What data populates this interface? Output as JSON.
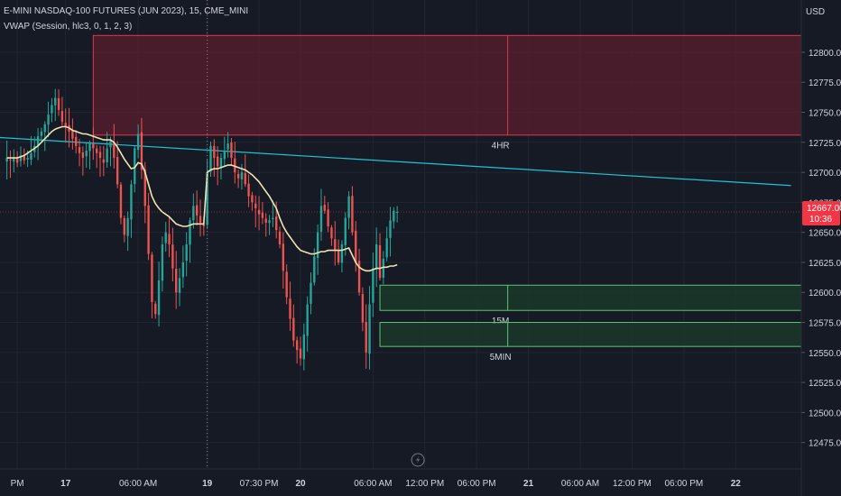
{
  "header": {
    "title": "E-MINI NASDAQ-100 FUTURES (JUN 2023), 15, CME_MINI",
    "indicator": "VWAP (Session, hlc3, 0, 1, 2, 3)"
  },
  "price_axis": {
    "currency": "USD",
    "last_price": "12667.00",
    "countdown": "10:36"
  },
  "colors": {
    "background": "#161a25",
    "up": "#26a69a",
    "down": "#ef5350",
    "vwap": "#f0e3b2",
    "trendline": "#22c2d6",
    "zone_4hr_fill": "#5a1e2c",
    "zone_4hr_border": "#e0384a",
    "zone_green_fill": "#1a3a2a",
    "zone_green_border": "#59c774",
    "price_badge": "#f23645",
    "grid": "#222632",
    "axis_text": "#d1d4dc"
  },
  "chart_data": {
    "type": "candlestick",
    "title": "E-MINI NASDAQ-100 FUTURES (JUN 2023), 15, CME_MINI",
    "ylim": [
      12462,
      12836
    ],
    "x_slot_range": [
      -2,
      230
    ],
    "y_ticks": [
      12475,
      12500,
      12525,
      12550,
      12575,
      12600,
      12625,
      12650,
      12675,
      12700,
      12725,
      12750,
      12775,
      12800
    ],
    "x_ticks": [
      {
        "slot": 3,
        "label": "PM"
      },
      {
        "slot": 17,
        "label": "17"
      },
      {
        "slot": 38,
        "label": "06:00 AM"
      },
      {
        "slot": 58,
        "label": "19"
      },
      {
        "slot": 73,
        "label": "07:30 PM"
      },
      {
        "slot": 85,
        "label": "20"
      },
      {
        "slot": 106,
        "label": "06:00 AM"
      },
      {
        "slot": 121,
        "label": "12:00 PM"
      },
      {
        "slot": 136,
        "label": "06:00 PM"
      },
      {
        "slot": 151,
        "label": "21"
      },
      {
        "slot": 166,
        "label": "06:00 AM"
      },
      {
        "slot": 181,
        "label": "12:00 PM"
      },
      {
        "slot": 196,
        "label": "06:00 PM"
      },
      {
        "slot": 211,
        "label": "22"
      }
    ],
    "session_break_slot": 58,
    "candles_close": [
      12712,
      12710,
      12712,
      12708,
      12714,
      12710,
      12712,
      12716,
      12722,
      12730,
      12734,
      12740,
      12748,
      12756,
      12762,
      12752,
      12742,
      12738,
      12734,
      12728,
      12722,
      12716,
      12712,
      12718,
      12724,
      12720,
      12716,
      12712,
      12708,
      12720,
      12726,
      12712,
      12690,
      12662,
      12648,
      12662,
      12690,
      12720,
      12732,
      12702,
      12672,
      12632,
      12592,
      12582,
      12610,
      12640,
      12650,
      12640,
      12620,
      12600,
      12612,
      12625,
      12640,
      12660,
      12672,
      12664,
      12658,
      12655,
      12700,
      12722,
      12712,
      12705,
      12712,
      12718,
      12724,
      12712,
      12700,
      12695,
      12700,
      12690,
      12680,
      12675,
      12670,
      12665,
      12662,
      12658,
      12660,
      12662,
      12652,
      12640,
      12618,
      12596,
      12578,
      12560,
      12552,
      12545,
      12565,
      12590,
      12608,
      12630,
      12650,
      12672,
      12668,
      12655,
      12645,
      12635,
      12625,
      12640,
      12662,
      12680,
      12650,
      12625,
      12600,
      12575,
      12550,
      12590,
      12620,
      12640,
      12612,
      12628,
      12645,
      12660,
      12668,
      12667
    ],
    "vwap": [
      12712,
      12712,
      12712,
      12712,
      12713,
      12714,
      12716,
      12718,
      12720,
      12722,
      12725,
      12728,
      12731,
      12734,
      12736,
      12737,
      12738,
      12738,
      12737,
      12735,
      12734,
      12733,
      12732,
      12732,
      12731,
      12730,
      12729,
      12728,
      12727,
      12727,
      12727,
      12725,
      12721,
      12716,
      12711,
      12707,
      12703,
      12704,
      12708,
      12707,
      12700,
      12690,
      12680,
      12674,
      12670,
      12667,
      12665,
      12663,
      12660,
      12657,
      12656,
      12655,
      12655,
      12656,
      12657,
      12657,
      12657,
      12657,
      12700,
      12702,
      12703,
      12703,
      12704,
      12705,
      12706,
      12706,
      12705,
      12704,
      12703,
      12702,
      12700,
      12698,
      12695,
      12692,
      12688,
      12684,
      12680,
      12675,
      12670,
      12662,
      12655,
      12650,
      12646,
      12642,
      12638,
      12635,
      12634,
      12633,
      12632,
      12632,
      12633,
      12634,
      12634,
      12635,
      12635,
      12635,
      12635,
      12635,
      12636,
      12637,
      12631,
      12625,
      12621,
      12619,
      12618,
      12618,
      12619,
      12620,
      12620,
      12621,
      12621,
      12622,
      12622,
      12623
    ],
    "trendline": {
      "start": [
        -2,
        12729
      ],
      "end": [
        227,
        12689
      ]
    },
    "zones": [
      {
        "name": "4HR",
        "top": 12814,
        "bottom": 12731,
        "start_slot": 25,
        "label_slot": 145,
        "label_price": 12723
      },
      {
        "name": "15M",
        "top": 12606,
        "bottom": 12585,
        "start_slot": 108,
        "label_slot": 145,
        "label_price": 12577
      },
      {
        "name": "5MIN",
        "top": 12575,
        "bottom": 12555,
        "start_slot": 108,
        "label_slot": 145,
        "label_price": 12547
      }
    ],
    "marker_slot": 119
  }
}
